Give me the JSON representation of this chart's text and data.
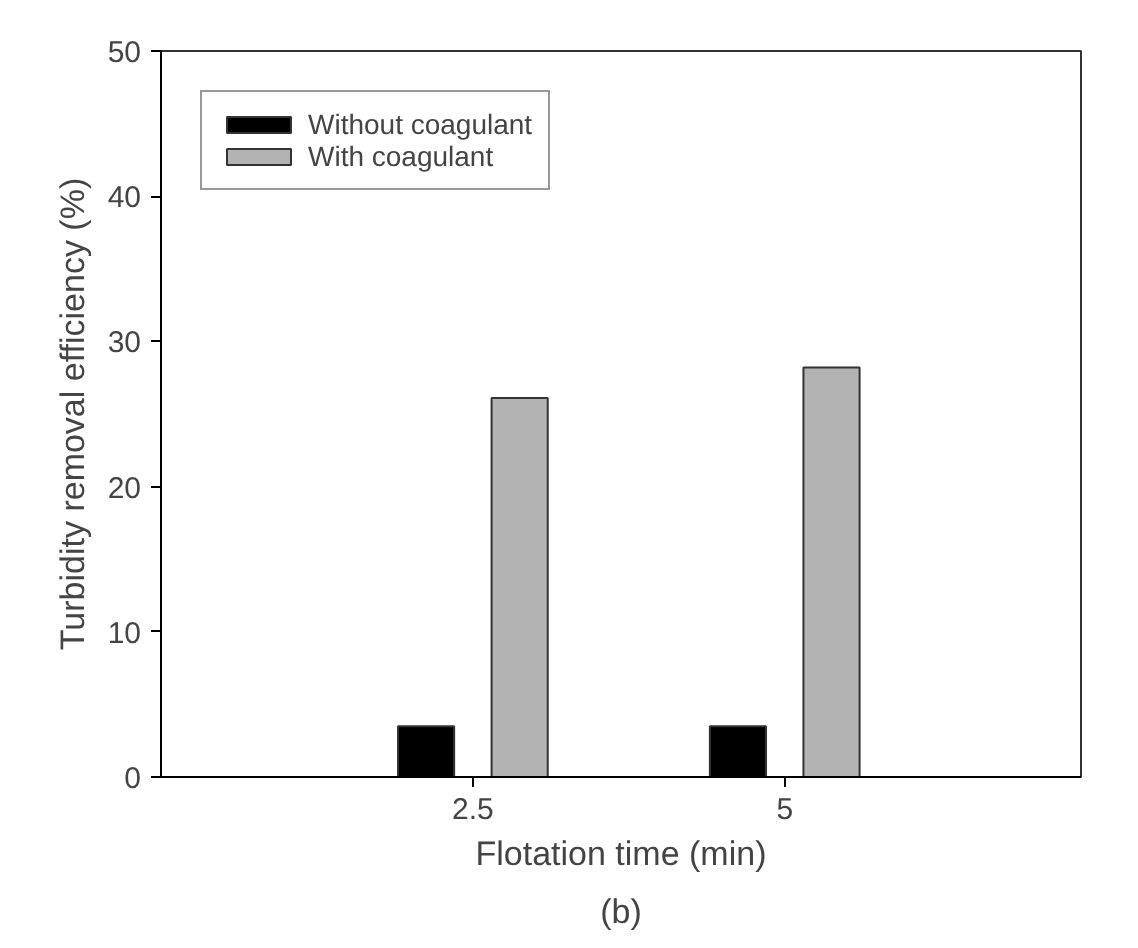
{
  "chart_data": {
    "type": "bar",
    "xlabel": "Flotation time (min)",
    "ylabel": "Turbidity removal efficiency (%)",
    "annotations": [
      "(b)"
    ],
    "categories": [
      "2.5",
      "5"
    ],
    "series": [
      {
        "name": "Without coagulant",
        "color": "#000000",
        "values": [
          3.5,
          3.5
        ]
      },
      {
        "name": "With coagulant",
        "color": "#b3b3b3",
        "values": [
          26.1,
          28.2
        ]
      }
    ],
    "ylim": [
      0,
      50
    ],
    "yticks": [
      0,
      10,
      20,
      30,
      40,
      50
    ],
    "grid": false,
    "legend": "top left"
  }
}
